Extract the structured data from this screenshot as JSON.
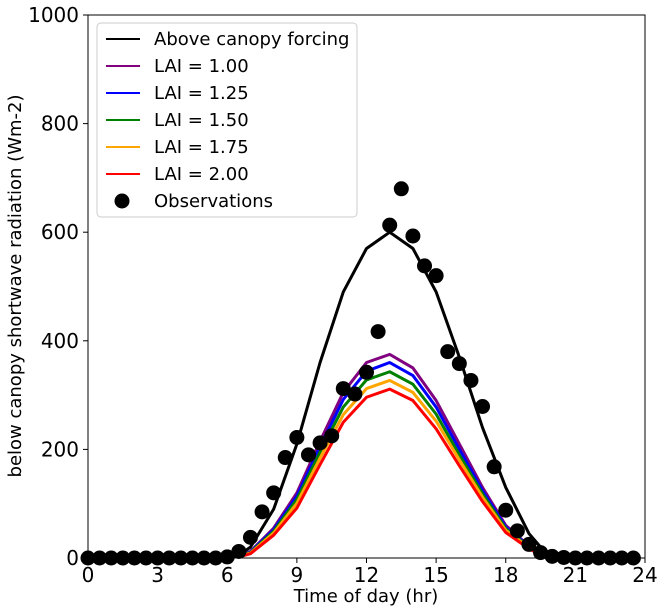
{
  "chart_data": {
    "type": "line",
    "title": "",
    "xlabel": "Time of day (hr)",
    "ylabel": "below canopy shortwave radiation (Wm-2)",
    "xlim": [
      0,
      24
    ],
    "ylim": [
      0,
      1000
    ],
    "xticks": [
      0,
      3,
      6,
      9,
      12,
      15,
      18,
      21,
      24
    ],
    "yticks": [
      0,
      200,
      400,
      600,
      800,
      1000
    ],
    "grid": false,
    "legend_position": "top-left",
    "x": [
      0,
      1,
      2,
      3,
      4,
      5,
      6,
      6.5,
      7,
      8,
      9,
      10,
      11,
      12,
      13,
      14,
      15,
      16,
      17,
      18,
      19,
      19.5,
      20,
      21,
      22,
      23,
      23.5
    ],
    "series": [
      {
        "name": "Above canopy forcing",
        "color": "#000000",
        "values": [
          0,
          0,
          0,
          0,
          0,
          0,
          0,
          5,
          20,
          90,
          210,
          360,
          490,
          570,
          600,
          570,
          490,
          370,
          240,
          130,
          45,
          20,
          5,
          0,
          0,
          0,
          0
        ]
      },
      {
        "name": "LAI = 1.00",
        "color": "#800080",
        "values": [
          0,
          0,
          0,
          0,
          0,
          0,
          0,
          3,
          12,
          55,
          120,
          215,
          305,
          360,
          375,
          350,
          290,
          210,
          130,
          60,
          22,
          8,
          2,
          0,
          0,
          0,
          0
        ]
      },
      {
        "name": "LAI = 1.25",
        "color": "#0000ff",
        "values": [
          0,
          0,
          0,
          0,
          0,
          0,
          0,
          3,
          11,
          52,
          114,
          205,
          292,
          344,
          360,
          336,
          278,
          200,
          124,
          57,
          21,
          7,
          2,
          0,
          0,
          0,
          0
        ]
      },
      {
        "name": "LAI = 1.50",
        "color": "#008000",
        "values": [
          0,
          0,
          0,
          0,
          0,
          0,
          0,
          3,
          10,
          49,
          108,
          195,
          278,
          328,
          343,
          320,
          265,
          190,
          118,
          54,
          20,
          7,
          2,
          0,
          0,
          0,
          0
        ]
      },
      {
        "name": "LAI = 1.75",
        "color": "#ffa500",
        "values": [
          0,
          0,
          0,
          0,
          0,
          0,
          0,
          2,
          9,
          46,
          101,
          184,
          264,
          312,
          327,
          305,
          252,
          181,
          112,
          51,
          19,
          6,
          2,
          0,
          0,
          0,
          0
        ]
      },
      {
        "name": "LAI = 2.00",
        "color": "#ff0000",
        "values": [
          0,
          0,
          0,
          0,
          0,
          0,
          0,
          2,
          8,
          42,
          92,
          172,
          250,
          296,
          311,
          290,
          238,
          170,
          104,
          47,
          17,
          6,
          1,
          0,
          0,
          0,
          0
        ]
      }
    ],
    "observations": {
      "name": "Observations",
      "color": "#000000",
      "points": [
        [
          0,
          0
        ],
        [
          0.5,
          0
        ],
        [
          1,
          0
        ],
        [
          1.5,
          0
        ],
        [
          2,
          0
        ],
        [
          2.5,
          0
        ],
        [
          3,
          0
        ],
        [
          3.5,
          0
        ],
        [
          4,
          0
        ],
        [
          4.5,
          0
        ],
        [
          5,
          0
        ],
        [
          5.5,
          0
        ],
        [
          6,
          2
        ],
        [
          6.5,
          12
        ],
        [
          7,
          38
        ],
        [
          7.5,
          85
        ],
        [
          8,
          120
        ],
        [
          8.5,
          185
        ],
        [
          9,
          222
        ],
        [
          9.5,
          190
        ],
        [
          10,
          212
        ],
        [
          10.5,
          225
        ],
        [
          11,
          312
        ],
        [
          11.5,
          302
        ],
        [
          12,
          342
        ],
        [
          12.5,
          417
        ],
        [
          13,
          613
        ],
        [
          13.5,
          680
        ],
        [
          14,
          593
        ],
        [
          14.5,
          538
        ],
        [
          15,
          520
        ],
        [
          15.5,
          380
        ],
        [
          16,
          358
        ],
        [
          16.5,
          327
        ],
        [
          17,
          279
        ],
        [
          17.5,
          168
        ],
        [
          18,
          88
        ],
        [
          18.5,
          50
        ],
        [
          19,
          25
        ],
        [
          19.5,
          10
        ],
        [
          20,
          3
        ],
        [
          20.5,
          1
        ],
        [
          21,
          0
        ],
        [
          21.5,
          0
        ],
        [
          22,
          0
        ],
        [
          22.5,
          0
        ],
        [
          23,
          0
        ],
        [
          23.5,
          0
        ]
      ]
    }
  }
}
